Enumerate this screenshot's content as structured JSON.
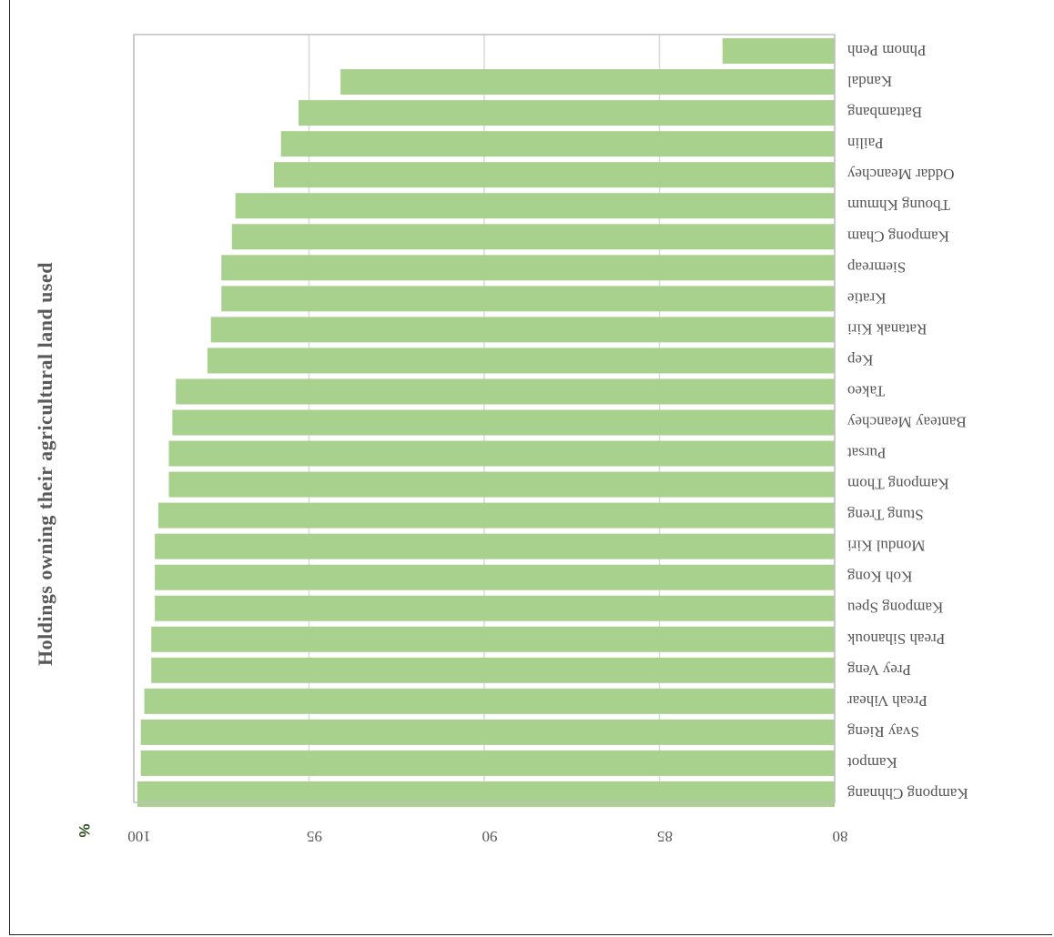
{
  "chart_data": {
    "type": "bar",
    "orientation": "horizontal",
    "rotation": "rotated 180 degrees",
    "title": "Holdings owning their agricultural land used",
    "unit_label": "%",
    "xlim": [
      80,
      100
    ],
    "x_ticks": [
      "80",
      "85",
      "90",
      "95",
      "100"
    ],
    "grid": true,
    "categories": [
      "Kampong Chhnang",
      "Kampot",
      "Svay Rieng",
      "Preah Vihear",
      "Prey Veng",
      "Preah Sihanouk",
      "Kampong Speu",
      "Koh Kong",
      "Mondul Kiri",
      "Stung Treng",
      "Kampong Thom",
      "Pursat",
      "Banteay Meanchey",
      "Takeo",
      "Kep",
      "Ratanak Kiri",
      "Kratie",
      "Siemreap",
      "Kampong Cham",
      "Tboung Khmum",
      "Oddar Meanchey",
      "Pailin",
      "Battambang",
      "Kandal",
      "Phnom Penh"
    ],
    "values": [
      99.9,
      99.8,
      99.8,
      99.7,
      99.5,
      99.5,
      99.4,
      99.4,
      99.4,
      99.3,
      99.0,
      99.0,
      98.9,
      98.8,
      97.9,
      97.8,
      97.5,
      97.5,
      97.2,
      97.1,
      96.0,
      95.8,
      95.3,
      94.1,
      83.2
    ],
    "colors": {
      "bar": "#a9d18e",
      "grid": "#d9d9d9",
      "axis": "#bfbfbf",
      "unit": "#375623"
    }
  }
}
